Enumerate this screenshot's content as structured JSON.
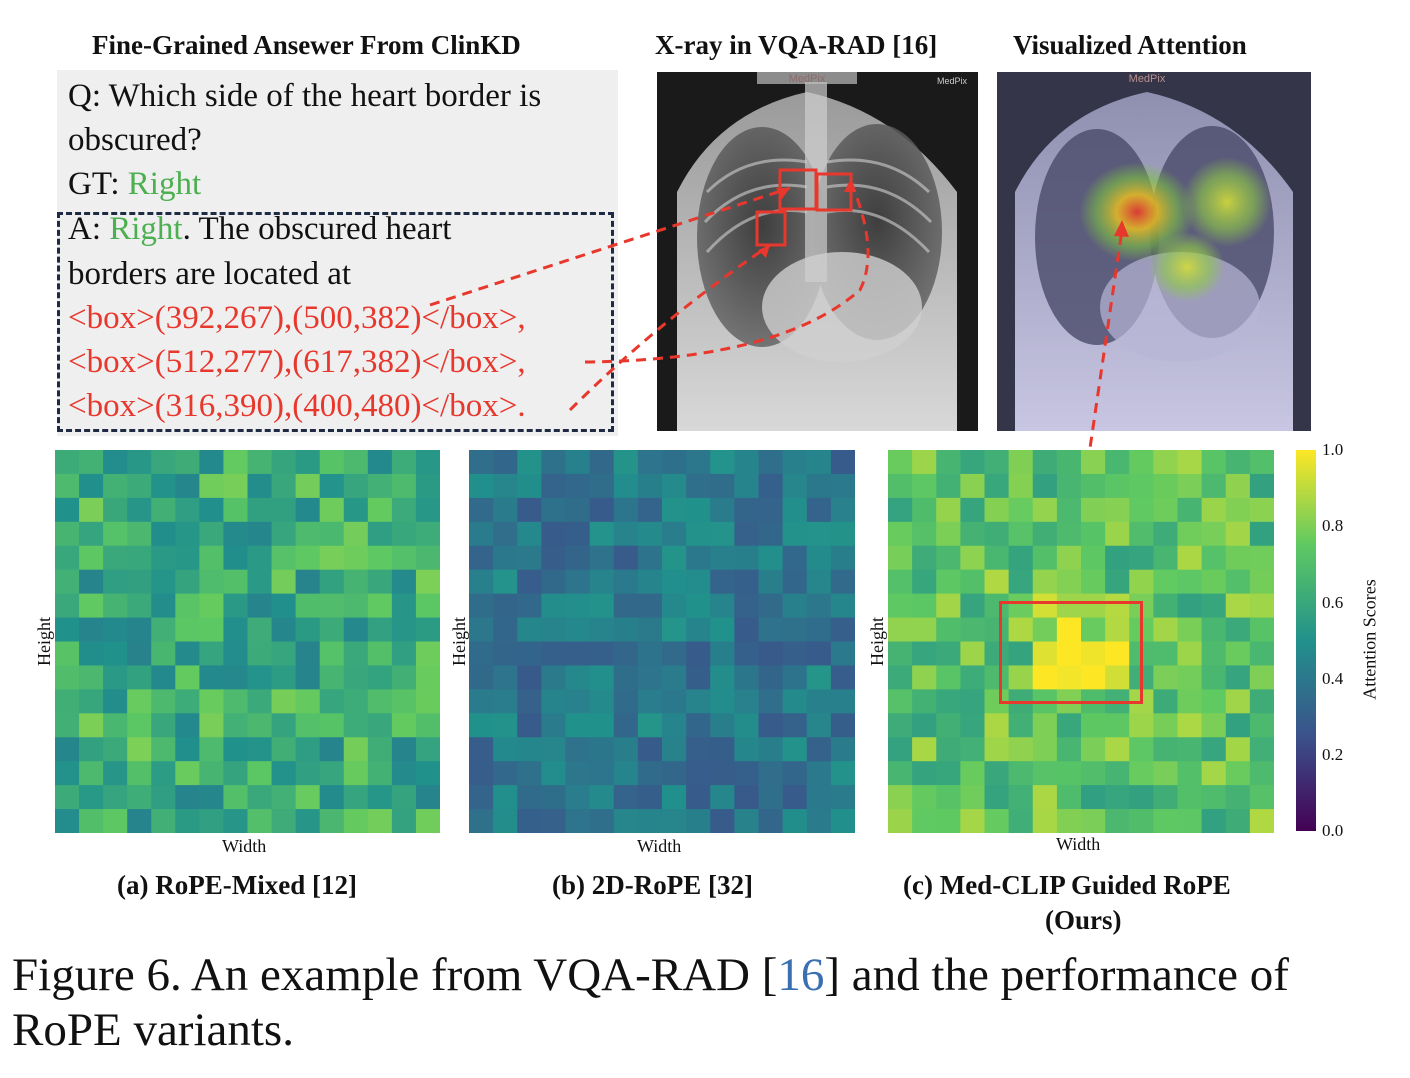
{
  "headers": {
    "left": "Fine-Grained Ansewer From ClinKD",
    "middle": "X-ray in VQA-RAD [16]",
    "right": "Visualized Attention"
  },
  "qa": {
    "q_line1": "Q: Which side of the heart border is",
    "q_line2": "obscured?",
    "gt_prefix": "GT: ",
    "gt_value": "Right",
    "a_prefix": "A: ",
    "a_value": "Right",
    "a_rest": ". The obscured heart",
    "a_line2": "borders are located at",
    "boxes": [
      "<box>(392,267),(500,382)</box>,",
      "<box>(512,277),(617,382)</box>,",
      "<box>(316,390),(400,480)</box>."
    ]
  },
  "xray": {
    "watermark": "MedPix"
  },
  "heatmaps": [
    {
      "id": "a",
      "caption": "(a) RoPE-Mixed [12]",
      "xlabel": "Width",
      "ylabel": "Height",
      "seed": 7,
      "base": 0.62,
      "spread": 0.18
    },
    {
      "id": "b",
      "caption": "(b) 2D-RoPE [32]",
      "xlabel": "Width",
      "ylabel": "Height",
      "seed": 3,
      "base": 0.4,
      "spread": 0.12
    },
    {
      "id": "c",
      "caption_line1": "(c) Med-CLIP Guided RoPE",
      "caption_line2": "(Ours)",
      "xlabel": "Width",
      "ylabel": "Height",
      "seed": 11,
      "base": 0.72,
      "spread": 0.16
    }
  ],
  "colorbar": {
    "label": "Attention Scores",
    "ticks": [
      "1.0",
      "0.8",
      "0.6",
      "0.4",
      "0.2",
      "0.0"
    ]
  },
  "figure_caption": {
    "prefix": "Figure 6. An example from VQA-RAD [",
    "ref": "16",
    "suffix": "] and the performance of RoPE variants."
  },
  "colors": {
    "annotation_red": "#e8372c",
    "gt_green": "#4caf50",
    "link_blue": "#3a6fb0"
  }
}
